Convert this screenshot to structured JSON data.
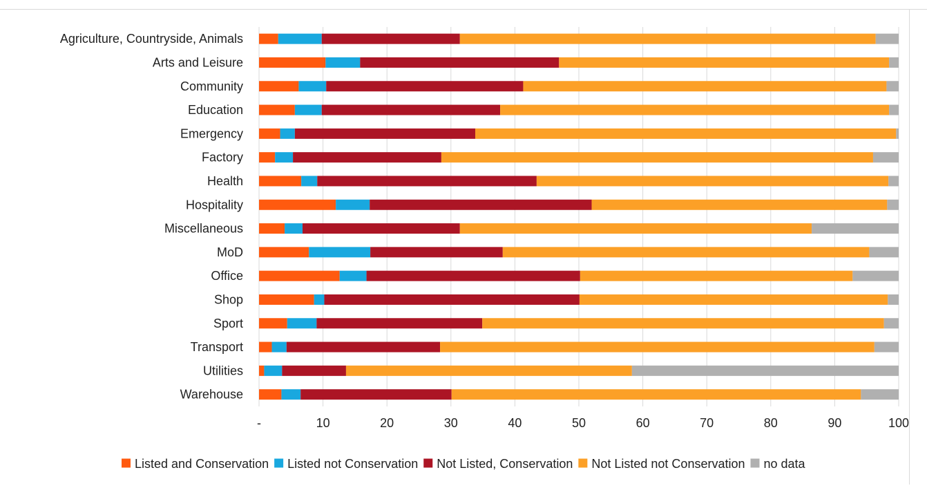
{
  "chart_data": {
    "type": "bar",
    "orientation": "horizontal",
    "stacked": true,
    "categories": [
      "Agriculture, Countryside, Animals",
      "Arts and Leisure",
      "Community",
      "Education",
      "Emergency",
      "Factory",
      "Health",
      "Hospitality",
      "Miscellaneous",
      "MoD",
      "Office",
      "Shop",
      "Sport",
      "Transport",
      "Utilities",
      "Warehouse"
    ],
    "series": [
      {
        "name": "Listed and Conservation",
        "color": "#ff5a0f",
        "values": [
          3.0,
          10.4,
          6.2,
          5.6,
          3.3,
          2.5,
          6.6,
          12.0,
          4.0,
          7.8,
          12.6,
          8.6,
          4.4,
          2.0,
          0.8,
          3.5
        ]
      },
      {
        "name": "Listed not Conservation",
        "color": "#19a8df",
        "values": [
          6.8,
          5.4,
          4.3,
          4.2,
          2.3,
          2.8,
          2.5,
          5.3,
          2.8,
          9.6,
          4.2,
          1.6,
          4.6,
          2.3,
          2.8,
          3.0
        ]
      },
      {
        "name": "Not Listed, Conservation",
        "color": "#ac1525",
        "values": [
          21.6,
          31.1,
          30.8,
          27.9,
          28.2,
          23.2,
          34.3,
          34.7,
          24.6,
          20.7,
          33.4,
          39.9,
          25.9,
          24.0,
          10.0,
          23.6
        ]
      },
      {
        "name": "Not Listed not Conservation",
        "color": "#fca027",
        "values": [
          65.0,
          51.6,
          56.8,
          60.8,
          65.8,
          67.5,
          55.0,
          46.2,
          55.0,
          57.3,
          42.6,
          48.2,
          62.8,
          67.9,
          44.7,
          64.0
        ]
      },
      {
        "name": "no data",
        "color": "#b0b0b0",
        "values": [
          3.6,
          1.5,
          1.9,
          1.5,
          0.4,
          4.0,
          1.6,
          1.8,
          13.6,
          4.6,
          7.2,
          1.7,
          2.3,
          3.8,
          41.7,
          5.9
        ]
      }
    ],
    "xlim": [
      0,
      100
    ],
    "x_ticks": [
      "-",
      "10",
      "20",
      "30",
      "40",
      "50",
      "60",
      "70",
      "80",
      "90",
      "100"
    ],
    "grid": true,
    "legend_position": "bottom",
    "title": "",
    "xlabel": "",
    "ylabel": ""
  }
}
